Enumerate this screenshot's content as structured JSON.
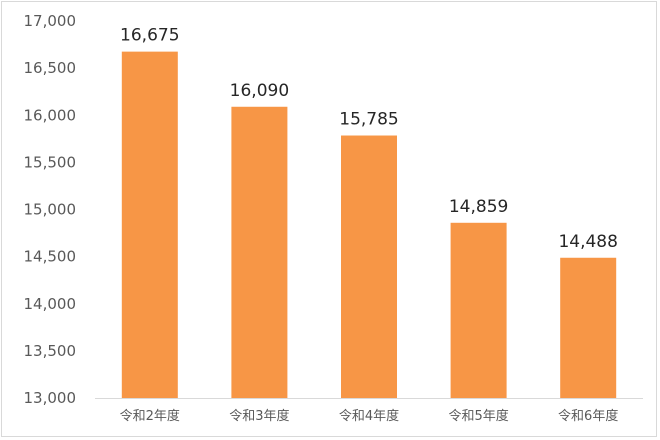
{
  "chart_data": {
    "type": "bar",
    "categories": [
      "令和2年度",
      "令和3年度",
      "令和4年度",
      "令和5年度",
      "令和6年度"
    ],
    "values": [
      16675,
      16090,
      15785,
      14859,
      14488
    ],
    "data_labels": [
      "16,675",
      "16,090",
      "15,785",
      "14,859",
      "14,488"
    ],
    "ylim": [
      13000,
      17000
    ],
    "yticks": [
      13000,
      13500,
      14000,
      14500,
      15000,
      15500,
      16000,
      16500,
      17000
    ],
    "ytick_labels": [
      "13,000",
      "13,500",
      "14,000",
      "14,500",
      "15,000",
      "15,500",
      "16,000",
      "16,500",
      "17,000"
    ],
    "title": "",
    "xlabel": "",
    "ylabel": "",
    "grid": false,
    "bar_color": "#f79646"
  }
}
